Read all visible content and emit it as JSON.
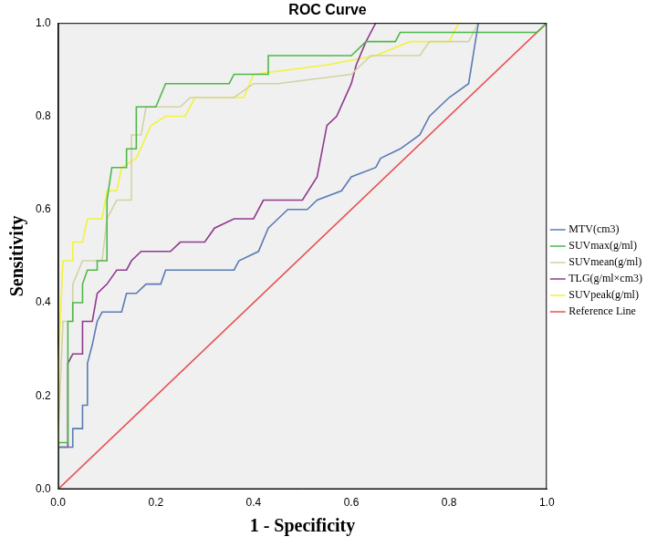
{
  "chart_data": {
    "type": "line",
    "title": "ROC Curve",
    "x_label": "1 - Specificity",
    "y_label": "Sensitivity",
    "xlim": [
      0,
      1
    ],
    "ylim": [
      0,
      1
    ],
    "xticks": [
      {
        "value": 0,
        "label": "0.0"
      },
      0.2,
      0.4,
      0.6,
      0.8,
      {
        "value": 1,
        "label": "1.0"
      }
    ],
    "yticks": [
      {
        "value": 0,
        "label": "0.0"
      },
      0.2,
      0.4,
      0.6,
      0.8,
      {
        "value": 1,
        "label": "1.0"
      }
    ],
    "grid": false,
    "legend": "right",
    "series": [
      {
        "name": "MTV(cm3)",
        "color": "#5a7bb5",
        "x": [
          0,
          0,
          0.03,
          0.03,
          0.05,
          0.05,
          0.06,
          0.06,
          0.07,
          0.08,
          0.09,
          0.13,
          0.14,
          0.16,
          0.18,
          0.21,
          0.22,
          0.36,
          0.37,
          0.41,
          0.43,
          0.45,
          0.47,
          0.51,
          0.53,
          0.58,
          0.6,
          0.65,
          0.66,
          0.7,
          0.74,
          0.76,
          0.8,
          0.84,
          0.86,
          1
        ],
        "values": [
          0,
          0.09,
          0.09,
          0.13,
          0.13,
          0.18,
          0.18,
          0.27,
          0.31,
          0.36,
          0.38,
          0.38,
          0.42,
          0.42,
          0.44,
          0.44,
          0.47,
          0.47,
          0.49,
          0.51,
          0.56,
          0.58,
          0.6,
          0.6,
          0.62,
          0.64,
          0.67,
          0.69,
          0.71,
          0.73,
          0.76,
          0.8,
          0.84,
          0.87,
          1,
          1
        ]
      },
      {
        "name": "SUVmax(g/ml)",
        "color": "#4db848",
        "x": [
          0,
          0,
          0.02,
          0.02,
          0.03,
          0.03,
          0.05,
          0.05,
          0.06,
          0.08,
          0.08,
          0.1,
          0.1,
          0.11,
          0.14,
          0.14,
          0.16,
          0.16,
          0.2,
          0.22,
          0.35,
          0.36,
          0.43,
          0.43,
          0.6,
          0.63,
          0.69,
          0.7,
          0.98,
          1
        ],
        "values": [
          0,
          0.1,
          0.1,
          0.36,
          0.36,
          0.4,
          0.4,
          0.44,
          0.47,
          0.47,
          0.49,
          0.49,
          0.62,
          0.69,
          0.69,
          0.73,
          0.73,
          0.82,
          0.82,
          0.87,
          0.87,
          0.89,
          0.89,
          0.93,
          0.93,
          0.96,
          0.96,
          0.98,
          0.98,
          1
        ]
      },
      {
        "name": "SUVmean(g/ml)",
        "color": "#d2d2a4",
        "x": [
          0,
          0,
          0.01,
          0.03,
          0.03,
          0.05,
          0.09,
          0.1,
          0.12,
          0.15,
          0.15,
          0.17,
          0.18,
          0.25,
          0.27,
          0.36,
          0.4,
          0.45,
          0.6,
          0.64,
          0.74,
          0.76,
          0.84,
          0.86,
          1
        ],
        "values": [
          0,
          0.11,
          0.36,
          0.36,
          0.44,
          0.49,
          0.49,
          0.58,
          0.62,
          0.62,
          0.76,
          0.76,
          0.82,
          0.82,
          0.84,
          0.84,
          0.87,
          0.87,
          0.89,
          0.93,
          0.93,
          0.96,
          0.96,
          1,
          1
        ]
      },
      {
        "name": "TLG(g/ml×cm3)",
        "color": "#8e3a8e",
        "x": [
          0,
          0,
          0.02,
          0.02,
          0.03,
          0.05,
          0.05,
          0.07,
          0.08,
          0.1,
          0.12,
          0.14,
          0.15,
          0.17,
          0.23,
          0.25,
          0.3,
          0.32,
          0.36,
          0.4,
          0.42,
          0.5,
          0.53,
          0.55,
          0.57,
          0.6,
          0.61,
          0.63,
          0.65,
          1
        ],
        "values": [
          0,
          0.09,
          0.09,
          0.27,
          0.29,
          0.29,
          0.36,
          0.36,
          0.42,
          0.44,
          0.47,
          0.47,
          0.49,
          0.51,
          0.51,
          0.53,
          0.53,
          0.56,
          0.58,
          0.58,
          0.62,
          0.62,
          0.67,
          0.78,
          0.8,
          0.87,
          0.91,
          0.96,
          1,
          1
        ]
      },
      {
        "name": "SUVpeak(g/ml)",
        "color": "#f2f23a",
        "x": [
          0,
          0,
          0.01,
          0.03,
          0.03,
          0.05,
          0.06,
          0.09,
          0.1,
          0.12,
          0.13,
          0.16,
          0.19,
          0.22,
          0.26,
          0.28,
          0.38,
          0.4,
          0.55,
          0.65,
          0.72,
          0.8,
          0.82,
          1
        ],
        "values": [
          0,
          0.27,
          0.49,
          0.49,
          0.53,
          0.53,
          0.58,
          0.58,
          0.64,
          0.64,
          0.69,
          0.71,
          0.78,
          0.8,
          0.8,
          0.84,
          0.84,
          0.89,
          0.91,
          0.93,
          0.96,
          0.96,
          1,
          1
        ]
      },
      {
        "name": "Reference Line",
        "color": "#e85050",
        "x": [
          0,
          1
        ],
        "values": [
          0,
          1
        ]
      }
    ]
  }
}
